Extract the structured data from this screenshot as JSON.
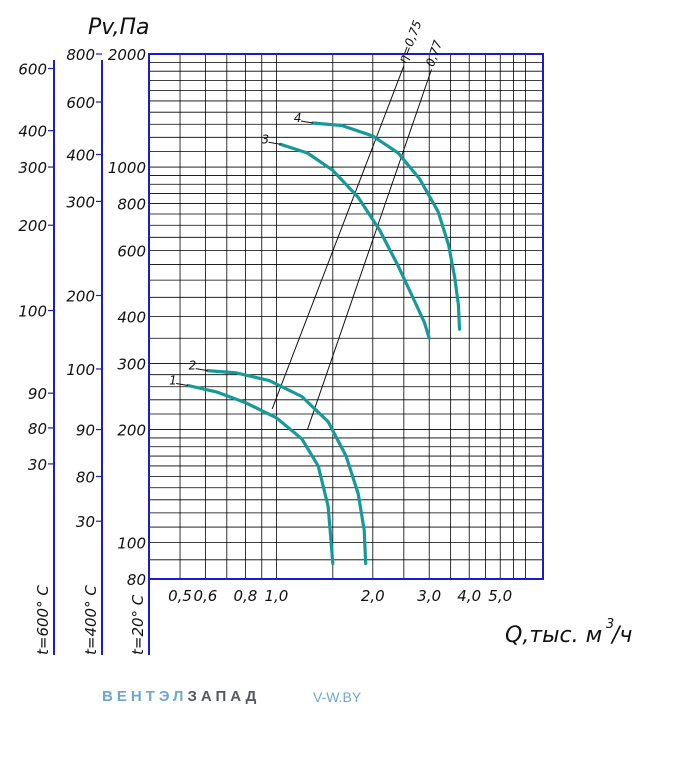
{
  "brand": {
    "part1": "ВЕНТЭЛ",
    "part2": "ЗАПАД",
    "site": "V-W.BY"
  },
  "colors": {
    "grid": "#000000",
    "frame": "#1c1ccc",
    "curve": "#17999a"
  },
  "chart_data": {
    "type": "line",
    "title": "",
    "ylabel": "Pv,Па",
    "xlabel": "Q,тыс. м³/ч",
    "xlabel_main": "Q,тыс. м",
    "xlabel_sup": "3",
    "xlabel_tail": "/ч",
    "x_scale": "log",
    "y_scale": "log",
    "xlim": [
      0.4,
      6.8
    ],
    "ylim": [
      80,
      2000
    ],
    "grid": true,
    "x_ticks": [
      {
        "v": 0.5,
        "label": "0,5"
      },
      {
        "v": 0.6,
        "label": "0,6"
      },
      {
        "v": 0.8,
        "label": "0,8"
      },
      {
        "v": 1.0,
        "label": "1,0"
      },
      {
        "v": 2.0,
        "label": "2,0"
      },
      {
        "v": 3.0,
        "label": "3,0"
      },
      {
        "v": 4.0,
        "label": "4,0"
      },
      {
        "v": 5.0,
        "label": "5,0"
      }
    ],
    "y_ticks": [
      {
        "v": 80,
        "label": "80"
      },
      {
        "v": 100,
        "label": "100"
      },
      {
        "v": 200,
        "label": "200"
      },
      {
        "v": 300,
        "label": "300"
      },
      {
        "v": 400,
        "label": "400"
      },
      {
        "v": 600,
        "label": "600"
      },
      {
        "v": 800,
        "label": "800"
      },
      {
        "v": 1000,
        "label": "1000"
      },
      {
        "v": 2000,
        "label": "2000"
      }
    ],
    "secondary_axes": [
      {
        "label": "t=20° С",
        "ticks": [
          {
            "v": 80,
            "label": "80"
          },
          {
            "v": 100,
            "label": "100"
          },
          {
            "v": 200,
            "label": "200"
          },
          {
            "v": 300,
            "label": "300"
          },
          {
            "v": 400,
            "label": "400"
          },
          {
            "v": 600,
            "label": "600"
          },
          {
            "v": 800,
            "label": "800"
          },
          {
            "v": 1000,
            "label": "1000"
          },
          {
            "v": 2000,
            "label": "2000"
          }
        ]
      },
      {
        "label": "t=400° С",
        "ticks": [
          {
            "v": 114,
            "label": "30"
          },
          {
            "v": 150,
            "label": "80"
          },
          {
            "v": 200,
            "label": "90"
          },
          {
            "v": 290,
            "label": "100"
          },
          {
            "v": 455,
            "label": "200"
          },
          {
            "v": 810,
            "label": "300"
          },
          {
            "v": 1080,
            "label": "400"
          },
          {
            "v": 1490,
            "label": "600"
          },
          {
            "v": 2000,
            "label": "800"
          }
        ]
      },
      {
        "label": "t=600° С",
        "ticks": [
          {
            "v": 162,
            "label": "30"
          },
          {
            "v": 202,
            "label": "80"
          },
          {
            "v": 250,
            "label": "90"
          },
          {
            "v": 415,
            "label": "100"
          },
          {
            "v": 700,
            "label": "200"
          },
          {
            "v": 1000,
            "label": "300"
          },
          {
            "v": 1250,
            "label": "400"
          },
          {
            "v": 1830,
            "label": "600"
          }
        ]
      }
    ],
    "series": [
      {
        "name": "1",
        "points": [
          [
            0.53,
            262
          ],
          [
            0.65,
            252
          ],
          [
            0.8,
            236
          ],
          [
            1.0,
            215
          ],
          [
            1.2,
            189
          ],
          [
            1.35,
            160
          ],
          [
            1.45,
            125
          ],
          [
            1.48,
            102
          ],
          [
            1.5,
            88
          ]
        ]
      },
      {
        "name": "2",
        "points": [
          [
            0.61,
            287
          ],
          [
            0.75,
            283
          ],
          [
            0.95,
            270
          ],
          [
            1.2,
            245
          ],
          [
            1.45,
            210
          ],
          [
            1.65,
            170
          ],
          [
            1.8,
            135
          ],
          [
            1.88,
            108
          ],
          [
            1.9,
            88
          ]
        ]
      },
      {
        "name": "3",
        "points": [
          [
            1.03,
            1150
          ],
          [
            1.25,
            1090
          ],
          [
            1.5,
            980
          ],
          [
            1.8,
            830
          ],
          [
            2.1,
            680
          ],
          [
            2.4,
            545
          ],
          [
            2.7,
            440
          ],
          [
            2.9,
            385
          ],
          [
            3.0,
            350
          ]
        ]
      },
      {
        "name": "4",
        "points": [
          [
            1.3,
            1310
          ],
          [
            1.6,
            1290
          ],
          [
            2.0,
            1210
          ],
          [
            2.4,
            1090
          ],
          [
            2.8,
            930
          ],
          [
            3.2,
            760
          ],
          [
            3.45,
            620
          ],
          [
            3.6,
            510
          ],
          [
            3.7,
            430
          ],
          [
            3.73,
            370
          ]
        ]
      }
    ],
    "efficiency_lines": [
      {
        "label": "η=0,75",
        "from": [
          0.97,
          227
        ],
        "to": [
          2.5,
          1860
        ]
      },
      {
        "label": "0,77",
        "from": [
          1.25,
          200
        ],
        "to": [
          3.05,
          1820
        ]
      }
    ]
  }
}
